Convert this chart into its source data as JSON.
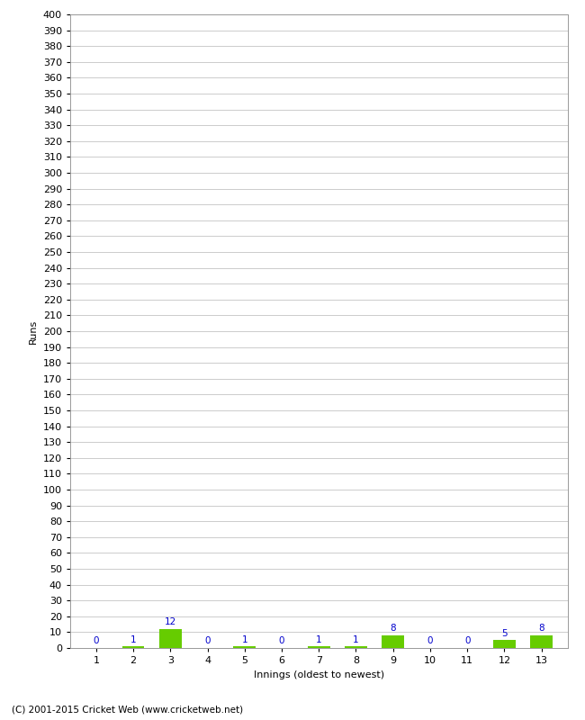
{
  "xlabel": "Innings (oldest to newest)",
  "ylabel": "Runs",
  "categories": [
    1,
    2,
    3,
    4,
    5,
    6,
    7,
    8,
    9,
    10,
    11,
    12,
    13
  ],
  "values": [
    0,
    1,
    12,
    0,
    1,
    0,
    1,
    1,
    8,
    0,
    0,
    5,
    8
  ],
  "bar_color": "#66cc00",
  "label_color": "#0000cc",
  "ylim": [
    0,
    400
  ],
  "background_color": "#ffffff",
  "grid_color": "#cccccc",
  "footer": "(C) 2001-2015 Cricket Web (www.cricketweb.net)"
}
